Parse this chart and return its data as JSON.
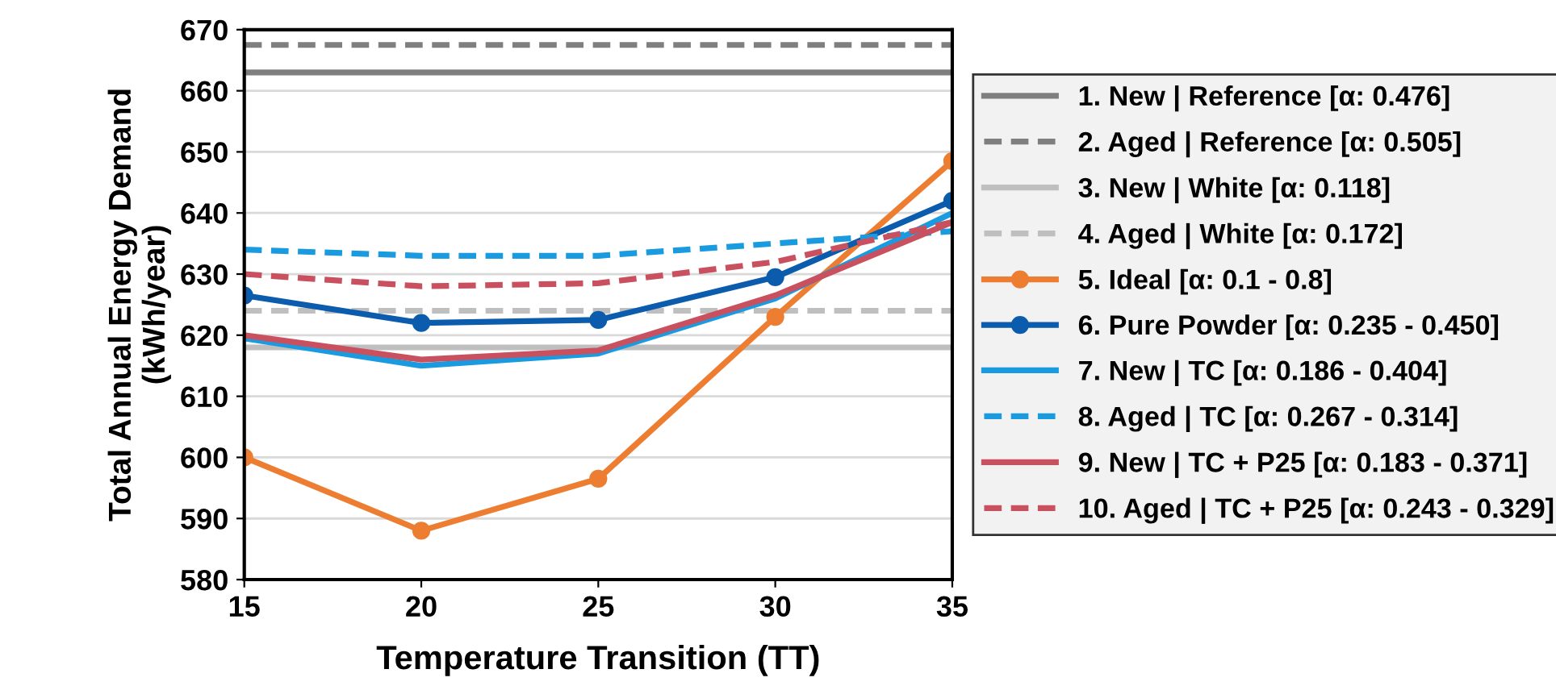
{
  "chart_data": {
    "type": "line",
    "xlabel": "Temperature Transition (TT)",
    "ylabel": "Total Annual Energy Demand\n(kWh/year)",
    "x": [
      15,
      20,
      25,
      30,
      35
    ],
    "xlim": [
      15,
      35
    ],
    "xticks": [
      15,
      20,
      25,
      30,
      35
    ],
    "ylim": [
      580,
      670
    ],
    "yticks": [
      580,
      590,
      600,
      610,
      620,
      630,
      640,
      650,
      660,
      670
    ],
    "grid": "y",
    "legend": "right",
    "series": [
      {
        "name": "1. New | Reference [α: 0.476]",
        "color": "#7f7f7f",
        "line_style": "solid",
        "marker": "none",
        "values": [
          663,
          663,
          663,
          663,
          663
        ]
      },
      {
        "name": "2. Aged | Reference [α: 0.505]",
        "color": "#7f7f7f",
        "line_style": "dashed",
        "marker": "none",
        "values": [
          667.5,
          667.5,
          667.5,
          667.5,
          667.5
        ]
      },
      {
        "name": "3. New | White [α: 0.118]",
        "color": "#bfbfbf",
        "line_style": "solid",
        "marker": "none",
        "values": [
          618,
          618,
          618,
          618,
          618
        ]
      },
      {
        "name": "4. Aged | White [α: 0.172]",
        "color": "#bfbfbf",
        "line_style": "dashed",
        "marker": "none",
        "values": [
          624,
          624,
          624,
          624,
          624
        ]
      },
      {
        "name": "5. Ideal [α: 0.1 - 0.8]",
        "color": "#ed7d31",
        "line_style": "solid",
        "marker": "circle",
        "values": [
          600,
          588,
          596.5,
          623,
          648.5
        ]
      },
      {
        "name": "6. Pure Powder [α: 0.235 - 0.450]",
        "color": "#0b5cad",
        "line_style": "solid",
        "marker": "circle",
        "values": [
          626.5,
          622,
          622.5,
          629.5,
          642
        ]
      },
      {
        "name": "7. New | TC [α: 0.186 - 0.404]",
        "color": "#1a9be0",
        "line_style": "solid",
        "marker": "none",
        "values": [
          619.5,
          615,
          617,
          626,
          640
        ]
      },
      {
        "name": "8. Aged | TC [α: 0.267 - 0.314]",
        "color": "#1a9be0",
        "line_style": "dashed",
        "marker": "none",
        "values": [
          634,
          633,
          633,
          635,
          637
        ]
      },
      {
        "name": "9. New | TC + P25 [α: 0.183 - 0.371]",
        "color": "#c9505e",
        "line_style": "solid",
        "marker": "none",
        "values": [
          620,
          616,
          617.5,
          626.5,
          638.5
        ]
      },
      {
        "name": "10. Aged | TC + P25 [α: 0.243 - 0.329]",
        "color": "#c9505e",
        "line_style": "dashed",
        "marker": "none",
        "values": [
          630,
          628,
          628.5,
          632,
          638.5
        ]
      }
    ]
  }
}
